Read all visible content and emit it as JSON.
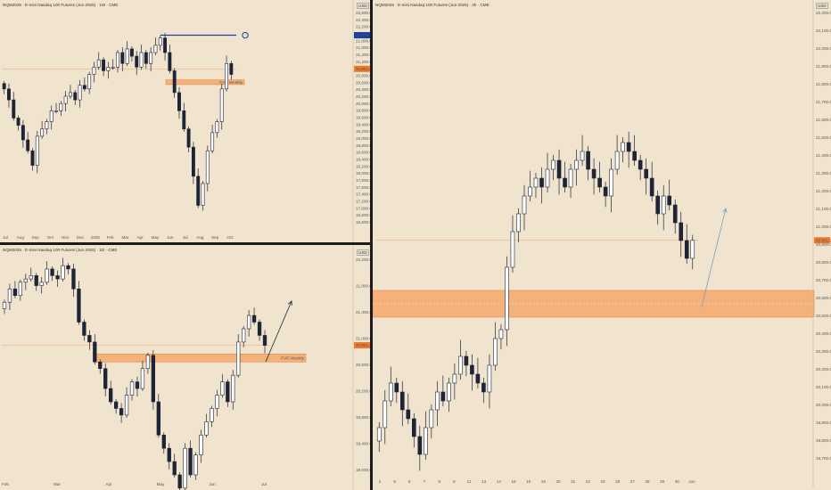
{
  "panels": {
    "weekly": {
      "title": "NQM2025 · E-mini Nasdaq 100 Futures (Jun 2025) · 1W · CME",
      "currency": "USD",
      "price_ticks": [
        "22,600.00",
        "22,400.00",
        "22,200.00",
        "22,000.00",
        "21,800.00",
        "21,600.00",
        "21,400.00",
        "21,200.00",
        "21,000.00",
        "20,800.00",
        "20,600.00",
        "20,400.00",
        "20,200.00",
        "20,000.00",
        "19,800.00",
        "19,600.00",
        "19,400.00",
        "19,200.00",
        "19,000.00",
        "18,800.00",
        "18,600.00",
        "18,400.00",
        "18,200.00",
        "18,000.00",
        "17,800.00",
        "17,600.00",
        "17,400.00",
        "17,200.00",
        "17,000.00",
        "16,800.00",
        "16,600.00"
      ],
      "time_ticks": [
        "Jul",
        "Aug",
        "Sep",
        "Oct",
        "Nov",
        "Dec",
        "2025",
        "Feb",
        "Mar",
        "Apr",
        "May",
        "Jun",
        "Jul",
        "Aug",
        "Sep",
        "Oct"
      ],
      "level_label": "21,876.75",
      "price_label": "20,951.25",
      "zone_label": "FVG Weekly"
    },
    "daily": {
      "title": "NQM2025 · E-mini Nasdaq 100 Futures (Jun 2025) · 1D · CME",
      "currency": "USD",
      "price_ticks": [
        "22,200.00",
        "21,800.00",
        "21,400.00",
        "21,000.00",
        "20,600.00",
        "20,200.00",
        "19,800.00",
        "19,400.00",
        "19,000.00"
      ],
      "time_ticks": [
        "Feb",
        "Mar",
        "Apr",
        "May",
        "Jun",
        "Jul"
      ],
      "price_label": "20,951.25",
      "zone_label": "FVG Weekly"
    },
    "h4": {
      "title": "NQM2025 · E-mini Nasdaq 100 Futures (Jun 2025) · 4h · CME",
      "currency": "USD",
      "price_ticks": [
        "22,200.00",
        "22,100.00",
        "22,000.00",
        "21,900.00",
        "21,800.00",
        "21,700.00",
        "21,600.00",
        "21,500.00",
        "21,400.00",
        "21,300.00",
        "21,200.00",
        "21,100.00",
        "21,000.00",
        "20,900.00",
        "20,800.00",
        "20,700.00",
        "20,600.00",
        "20,500.00",
        "20,400.00",
        "20,300.00",
        "20,200.00",
        "20,100.00",
        "20,000.00",
        "19,900.00",
        "19,800.00",
        "19,700.00"
      ],
      "time_ticks": [
        "2",
        "5",
        "6",
        "7",
        "8",
        "9",
        "11",
        "13",
        "14",
        "15",
        "16",
        "19",
        "20",
        "21",
        "22",
        "23",
        "25",
        "27",
        "28",
        "29",
        "30",
        "Jun"
      ],
      "price_label": "20,951.25"
    }
  },
  "colors": {
    "background": "#f1e4cf",
    "bull": "#ffffff",
    "bear": "#1e2435",
    "level": "#1a3fa6",
    "zone": "#f5a86a",
    "price": "#f07a2c"
  },
  "chart_data": [
    {
      "type": "candlestick",
      "title": "NQM2025 · E-mini Nasdaq 100 Futures (Jun 2025) · 1W · CME",
      "timeframe": "1W",
      "ylim": [
        16600,
        22600
      ],
      "key_level": 21876.75,
      "last_price": 20951.25,
      "fvg_zone": [
        20520,
        20650
      ],
      "zone_label": "FVG Weekly",
      "closes": [
        20400,
        20100,
        19600,
        19400,
        19000,
        18700,
        18300,
        19100,
        19300,
        19500,
        19800,
        19800,
        20000,
        20200,
        20300,
        20100,
        20500,
        20400,
        20800,
        21000,
        21200,
        20900,
        21000,
        21000,
        21400,
        21100,
        21500,
        21300,
        21000,
        21400,
        21100,
        21400,
        21600,
        21800,
        21400,
        20900,
        20300,
        19800,
        19300,
        18800,
        18000,
        17200,
        17800,
        18700,
        19200,
        19500,
        20400,
        21100,
        20800
      ]
    },
    {
      "type": "candlestick",
      "title": "NQM2025 · E-mini Nasdaq 100 Futures (Jun 2025) · 1D · CME",
      "timeframe": "1D",
      "ylim": [
        19000,
        22300
      ],
      "last_price": 20951.25,
      "fvg_zone": [
        20700,
        20820
      ],
      "zone_label": "FVG Weekly",
      "closes": [
        21600,
        21800,
        21700,
        21900,
        21950,
        22000,
        21850,
        21900,
        22100,
        22000,
        21950,
        22150,
        22100,
        21800,
        21300,
        21100,
        21000,
        20700,
        20600,
        20300,
        20100,
        20000,
        19900,
        20200,
        20400,
        20300,
        20600,
        20800,
        20100,
        19600,
        19400,
        19200,
        19000,
        18800,
        19400,
        19000,
        19300,
        19600,
        19800,
        20000,
        20200,
        20400,
        20100,
        20500,
        21000,
        21200,
        21400,
        21300,
        21100,
        20950
      ]
    },
    {
      "type": "candlestick",
      "title": "NQM2025 · E-mini Nasdaq 100 Futures (Jun 2025) · 4h · CME",
      "timeframe": "4h",
      "ylim": [
        19700,
        22250
      ],
      "last_price": 20951.25,
      "fvg_zone": [
        20520,
        20670
      ],
      "closes": [
        19900,
        20050,
        20150,
        20100,
        20000,
        19950,
        19850,
        19750,
        19900,
        20000,
        20100,
        20050,
        20150,
        20200,
        20300,
        20250,
        20200,
        20150,
        20100,
        20250,
        20400,
        20450,
        20800,
        21000,
        21100,
        21200,
        21250,
        21300,
        21250,
        21350,
        21400,
        21300,
        21250,
        21350,
        21400,
        21450,
        21350,
        21300,
        21250,
        21200,
        21350,
        21450,
        21500,
        21450,
        21400,
        21350,
        21300,
        21200,
        21100,
        21200,
        21150,
        21050,
        20950,
        20850,
        20951
      ]
    }
  ]
}
